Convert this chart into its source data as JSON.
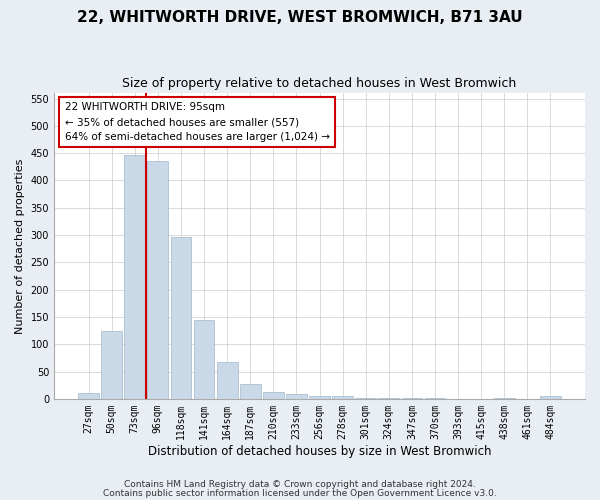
{
  "title": "22, WHITWORTH DRIVE, WEST BROMWICH, B71 3AU",
  "subtitle": "Size of property relative to detached houses in West Bromwich",
  "xlabel": "Distribution of detached houses by size in West Bromwich",
  "ylabel": "Number of detached properties",
  "categories": [
    "27sqm",
    "50sqm",
    "73sqm",
    "96sqm",
    "118sqm",
    "141sqm",
    "164sqm",
    "187sqm",
    "210sqm",
    "233sqm",
    "256sqm",
    "278sqm",
    "301sqm",
    "324sqm",
    "347sqm",
    "370sqm",
    "393sqm",
    "415sqm",
    "438sqm",
    "461sqm",
    "484sqm"
  ],
  "values": [
    10,
    125,
    447,
    435,
    297,
    145,
    68,
    27,
    13,
    8,
    6,
    5,
    2,
    1,
    1,
    1,
    0,
    0,
    1,
    0,
    6
  ],
  "bar_color": "#c9d9e8",
  "bar_edge_color": "#a0b8cc",
  "vline_color": "#cc0000",
  "vline_x_index": 3,
  "annotation_text": "22 WHITWORTH DRIVE: 95sqm\n← 35% of detached houses are smaller (557)\n64% of semi-detached houses are larger (1,024) →",
  "annotation_box_color": "#ffffff",
  "annotation_box_edge_color": "#cc0000",
  "ylim": [
    0,
    560
  ],
  "yticks": [
    0,
    50,
    100,
    150,
    200,
    250,
    300,
    350,
    400,
    450,
    500,
    550
  ],
  "footer1": "Contains HM Land Registry data © Crown copyright and database right 2024.",
  "footer2": "Contains public sector information licensed under the Open Government Licence v3.0.",
  "background_color": "#e8eef4",
  "plot_bg_color": "#ffffff",
  "title_fontsize": 11,
  "subtitle_fontsize": 9,
  "xlabel_fontsize": 8.5,
  "ylabel_fontsize": 8,
  "tick_fontsize": 7,
  "annotation_fontsize": 7.5,
  "footer_fontsize": 6.5
}
